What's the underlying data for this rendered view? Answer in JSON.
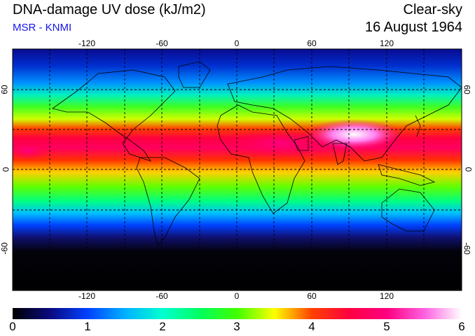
{
  "header": {
    "title": "DNA-damage UV dose (kJ/m2)",
    "subtitle": "MSR - KNMI",
    "sky_condition": "Clear-sky",
    "date": "16 August 1964"
  },
  "map": {
    "lon_ticks": [
      "-120",
      "-60",
      "0",
      "60",
      "120"
    ],
    "lat_ticks_left": [
      "60",
      "0",
      "-60"
    ],
    "lat_ticks_right": [
      "60",
      "0",
      "-60"
    ],
    "lon_range": [
      -180,
      180
    ],
    "lat_range": [
      -90,
      90
    ],
    "grid": "dashed every 30 degrees"
  },
  "colorbar": {
    "labels": [
      "0",
      "1",
      "2",
      "3",
      "4",
      "5",
      "6"
    ],
    "min": 0,
    "max": 6,
    "stops": [
      {
        "value": 0,
        "color": "#000000"
      },
      {
        "value": 0.5,
        "color": "#0a0a80"
      },
      {
        "value": 1,
        "color": "#0040ff"
      },
      {
        "value": 1.5,
        "color": "#00b0ff"
      },
      {
        "value": 2,
        "color": "#00ffd0"
      },
      {
        "value": 2.5,
        "color": "#00ff60"
      },
      {
        "value": 3,
        "color": "#40ff00"
      },
      {
        "value": 3.5,
        "color": "#ffff00"
      },
      {
        "value": 4,
        "color": "#ff4000"
      },
      {
        "value": 4.5,
        "color": "#ff0040"
      },
      {
        "value": 5,
        "color": "#ff0080"
      },
      {
        "value": 5.5,
        "color": "#ff60e0"
      },
      {
        "value": 6,
        "color": "#ffffff"
      }
    ]
  }
}
